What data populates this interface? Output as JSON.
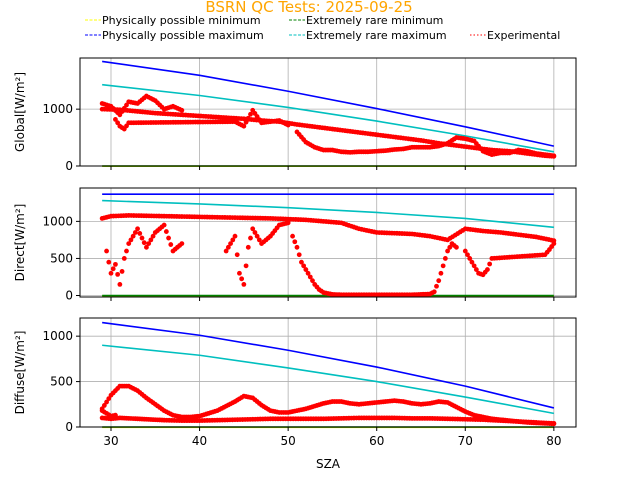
{
  "chart_data": {
    "type": "scatter",
    "title": "BSRN QC Tests: 2025-09-25",
    "title_color": "#ffa500",
    "xlabel": "SZA",
    "xlim": [
      26.5,
      82.5
    ],
    "xticks": [
      30,
      40,
      50,
      60,
      70,
      80
    ],
    "grid": true,
    "legend_placement": "top",
    "legend": [
      {
        "name": "Physically possible minimum",
        "color": "#ffff00",
        "style": "dashed"
      },
      {
        "name": "Physically possible maximum",
        "color": "#0000ff",
        "style": "dashed"
      },
      {
        "name": "Extremely rare minimum",
        "color": "#008000",
        "style": "dashed"
      },
      {
        "name": "Extremely rare maximum",
        "color": "#00bfbf",
        "style": "dashed"
      },
      {
        "name": "Experimental",
        "color": "#ff0000",
        "style": "dotted"
      }
    ],
    "panels": [
      {
        "ylabel": "Global[W/m²]",
        "ylim": [
          0,
          1900
        ],
        "yticks": [
          0,
          1000
        ],
        "lines": [
          {
            "series": "Physically possible minimum",
            "color": "#ffff00",
            "x": [
              29,
              80
            ],
            "y": [
              -4,
              -4
            ]
          },
          {
            "series": "Extremely rare minimum",
            "color": "#008000",
            "x": [
              29,
              80
            ],
            "y": [
              0,
              0
            ]
          },
          {
            "series": "Physically possible maximum",
            "color": "#0000ff",
            "x": [
              29,
              40,
              50,
              60,
              70,
              80
            ],
            "y": [
              1840,
              1595,
              1315,
              1010,
              690,
              350
            ]
          },
          {
            "series": "Extremely rare maximum",
            "color": "#00bfbf",
            "x": [
              29,
              40,
              50,
              60,
              70,
              80
            ],
            "y": [
              1430,
              1240,
              1030,
              790,
              530,
              250
            ]
          }
        ],
        "experimental": {
          "color": "#ff0000",
          "segments": [
            {
              "x": [
                29,
                31,
                33,
                35,
                37,
                39,
                41,
                43,
                45,
                47,
                49,
                51,
                53,
                55,
                57,
                59,
                61,
                63,
                65,
                67,
                69,
                71,
                73,
                75,
                77,
                79,
                80
              ],
              "y": [
                1000,
                990,
                960,
                930,
                910,
                890,
                870,
                850,
                830,
                800,
                780,
                730,
                690,
                650,
                610,
                570,
                530,
                490,
                450,
                400,
                360,
                320,
                280,
                260,
                220,
                180,
                170
              ]
            },
            {
              "x": [
                29,
                30,
                31,
                32,
                33,
                34,
                35,
                36,
                37,
                38
              ],
              "y": [
                1100,
                1050,
                900,
                1130,
                1100,
                1230,
                1150,
                1000,
                1050,
                980
              ]
            },
            {
              "x": [
                30.5,
                31,
                31.5,
                32,
                44,
                45,
                46,
                47,
                48,
                49,
                50
              ],
              "y": [
                820,
                700,
                650,
                760,
                780,
                700,
                980,
                760,
                780,
                800,
                720
              ]
            },
            {
              "x": [
                51,
                52,
                53,
                54,
                55,
                56,
                57,
                58,
                59,
                60,
                61,
                62,
                63,
                64,
                65,
                66,
                67,
                68,
                69,
                70,
                71,
                72,
                73,
                74,
                75,
                76,
                77,
                78,
                79,
                80
              ],
              "y": [
                600,
                420,
                330,
                280,
                280,
                250,
                240,
                250,
                250,
                260,
                270,
                290,
                300,
                330,
                330,
                330,
                350,
                400,
                500,
                480,
                440,
                260,
                200,
                230,
                230,
                280,
                260,
                220,
                200,
                180
              ]
            }
          ]
        }
      },
      {
        "ylabel": "Direct[W/m²]",
        "ylim": [
          -20,
          1450
        ],
        "yticks": [
          0,
          500,
          1000
        ],
        "lines": [
          {
            "series": "Physically possible minimum",
            "color": "#ffff00",
            "x": [
              29,
              80
            ],
            "y": [
              -4,
              -4
            ]
          },
          {
            "series": "Extremely rare minimum",
            "color": "#008000",
            "x": [
              29,
              80
            ],
            "y": [
              0,
              0
            ]
          },
          {
            "series": "Physically possible maximum",
            "color": "#0000ff",
            "x": [
              29,
              80
            ],
            "y": [
              1367,
              1367
            ]
          },
          {
            "series": "Extremely rare maximum",
            "color": "#00bfbf",
            "x": [
              29,
              40,
              50,
              60,
              70,
              80
            ],
            "y": [
              1280,
              1235,
              1185,
              1120,
              1040,
              920
            ]
          }
        ],
        "experimental": {
          "color": "#ff0000",
          "segments": [
            {
              "x": [
                29,
                30,
                32,
                34,
                36,
                38,
                40,
                42,
                44,
                46,
                48,
                50,
                52,
                54,
                56,
                58,
                60,
                62,
                64,
                66,
                68,
                70,
                72,
                74,
                76,
                78,
                80
              ],
              "y": [
                1040,
                1070,
                1080,
                1075,
                1070,
                1065,
                1060,
                1055,
                1050,
                1045,
                1040,
                1030,
                1020,
                1000,
                980,
                900,
                850,
                840,
                830,
                800,
                750,
                900,
                870,
                850,
                820,
                790,
                740
              ]
            },
            {
              "x": [
                29.5,
                30,
                30.5,
                31,
                31.5,
                32,
                33,
                34,
                35,
                36,
                37,
                38
              ],
              "y": [
                600,
                300,
                420,
                150,
                500,
                700,
                900,
                650,
                850,
                950,
                600,
                700
              ]
            },
            {
              "x": [
                43,
                44,
                44.5,
                45,
                45.5,
                46,
                47,
                48,
                49,
                50
              ],
              "y": [
                600,
                800,
                300,
                150,
                650,
                900,
                700,
                800,
                950,
                980
              ]
            },
            {
              "x": [
                50.5,
                51,
                51.5,
                52,
                52.5,
                53,
                53.5,
                54,
                55,
                56,
                58,
                60,
                62,
                64,
                65,
                66,
                66.5,
                67,
                67.5,
                68,
                68.5,
                69
              ],
              "y": [
                800,
                650,
                450,
                350,
                250,
                150,
                80,
                40,
                15,
                10,
                10,
                10,
                10,
                10,
                15,
                20,
                50,
                200,
                400,
                600,
                700,
                650
              ]
            },
            {
              "x": [
                70,
                71,
                71.5,
                72,
                72.5,
                73,
                79,
                79.5,
                80
              ],
              "y": [
                600,
                400,
                300,
                280,
                350,
                500,
                550,
                620,
                700
              ]
            }
          ]
        }
      },
      {
        "ylabel": "Diffuse[W/m²]",
        "ylim": [
          0,
          1200
        ],
        "yticks": [
          0,
          500,
          1000
        ],
        "lines": [
          {
            "series": "Physically possible minimum",
            "color": "#ffff00",
            "x": [
              29,
              80
            ],
            "y": [
              -4,
              -4
            ]
          },
          {
            "series": "Extremely rare minimum",
            "color": "#008000",
            "x": [
              29,
              80
            ],
            "y": [
              0,
              0
            ]
          },
          {
            "series": "Physically possible maximum",
            "color": "#0000ff",
            "x": [
              29,
              40,
              50,
              60,
              70,
              80
            ],
            "y": [
              1150,
              1010,
              845,
              660,
              450,
              210
            ]
          },
          {
            "series": "Extremely rare maximum",
            "color": "#00bfbf",
            "x": [
              29,
              40,
              50,
              60,
              70,
              80
            ],
            "y": [
              900,
              790,
              650,
              500,
              330,
              150
            ]
          }
        ],
        "experimental": {
          "color": "#ff0000",
          "segments": [
            {
              "x": [
                29,
                30,
                31,
                32,
                33,
                34,
                35,
                36,
                37,
                38,
                39,
                40,
                41,
                42,
                43,
                44,
                45,
                46,
                47,
                48,
                49,
                50,
                51,
                52,
                53,
                54,
                55,
                56,
                57,
                58,
                59,
                60,
                61,
                62,
                63,
                64,
                65,
                66,
                67,
                68,
                69,
                70,
                71,
                72,
                73,
                74,
                75,
                76,
                77,
                78,
                79,
                80
              ],
              "y": [
                200,
                350,
                450,
                450,
                400,
                320,
                250,
                180,
                130,
                110,
                110,
                120,
                150,
                180,
                230,
                280,
                340,
                320,
                240,
                180,
                160,
                160,
                180,
                200,
                230,
                260,
                280,
                280,
                260,
                250,
                260,
                270,
                280,
                290,
                280,
                260,
                250,
                260,
                280,
                270,
                220,
                170,
                130,
                110,
                90,
                80,
                70,
                60,
                50,
                45,
                40,
                35
              ]
            },
            {
              "x": [
                29,
                30,
                31,
                32,
                33,
                34,
                35,
                36,
                38,
                40,
                42,
                44,
                46,
                48,
                50,
                52,
                54,
                56,
                58,
                60,
                62,
                64,
                66,
                68,
                70,
                72,
                74,
                76,
                78,
                80
              ],
              "y": [
                100,
                90,
                100,
                95,
                90,
                85,
                80,
                75,
                70,
                70,
                75,
                80,
                85,
                90,
                90,
                90,
                90,
                95,
                100,
                100,
                100,
                95,
                95,
                90,
                85,
                80,
                70,
                60,
                50,
                40
              ]
            },
            {
              "x": [
                29,
                29.5,
                30,
                30.5
              ],
              "y": [
                180,
                150,
                120,
                130
              ]
            }
          ]
        }
      }
    ]
  }
}
